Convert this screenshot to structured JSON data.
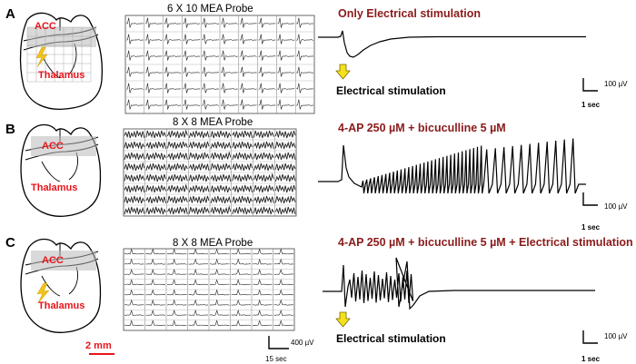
{
  "panels": [
    {
      "letter": "A",
      "probe_title": "6 X 10 MEA Probe",
      "grid": {
        "rows": 6,
        "cols": 10
      },
      "condition": "Only Electrical stimulation",
      "regions": [
        "ACC",
        "Thalamus"
      ],
      "stimulation_label": "Electrical stimulation",
      "scale_voltage": "100 µV",
      "scale_time": "1 sec"
    },
    {
      "letter": "B",
      "probe_title": "8 X 8 MEA Probe",
      "grid": {
        "rows": 8,
        "cols": 8
      },
      "condition": "4-AP 250 µM + bicuculline 5 µM",
      "regions": [
        "ACC",
        "Thalamus"
      ],
      "scale_voltage": "100 µV",
      "scale_time": "1 sec"
    },
    {
      "letter": "C",
      "probe_title": "8 X 8 MEA Probe",
      "grid": {
        "rows": 8,
        "cols": 8
      },
      "condition": "4-AP 250 µM + bicuculline 5 µM + Electrical stimulation",
      "regions": [
        "ACC",
        "Thalamus"
      ],
      "stimulation_label": "Electrical stimulation",
      "mea_scale_voltage": "400 µV",
      "mea_scale_time": "15 sec",
      "scale_voltage": "100 µV",
      "scale_time": "1 sec"
    }
  ],
  "brain_scale_bar": "2 mm",
  "colors": {
    "condition_text": "#8b1a1a",
    "region_text": "#e8141b",
    "acc_highlight": "#b9b9b9",
    "stim_arrow": "#f5e11a",
    "lightning": "#f2c318",
    "scale_bar": "#e8141b"
  }
}
